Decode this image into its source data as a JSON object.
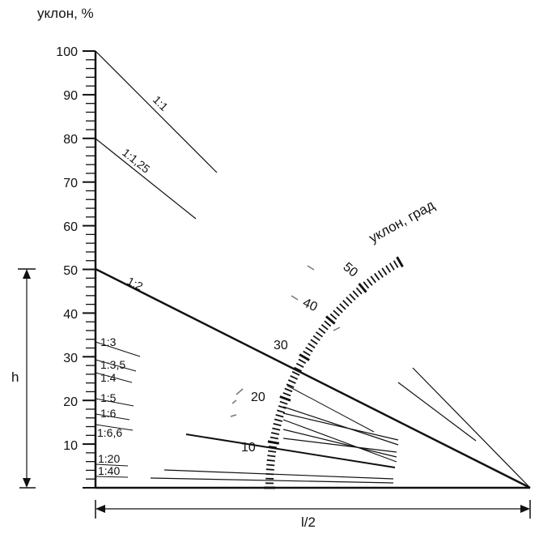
{
  "axis": {
    "title": "уклон, %",
    "ticks": [
      "100",
      "90",
      "80",
      "70",
      "60",
      "50",
      "40",
      "30",
      "20",
      "10"
    ]
  },
  "dimensions": {
    "height_label": "h",
    "base_label": "l/2"
  },
  "ratios": {
    "r1_1": "1:1",
    "r1_125": "1:1,25",
    "r1_2": "1:2",
    "r1_3": "1:3",
    "r1_35": "1:3,5",
    "r1_4": "1:4",
    "r1_5": "1:5",
    "r1_6": "1:6",
    "r1_66": "1:6,6",
    "r1_20": "1:20",
    "r1_40": "1:40"
  },
  "arc": {
    "title": "уклон, град",
    "ticks": [
      "10",
      "20",
      "30",
      "40",
      "50"
    ]
  }
}
